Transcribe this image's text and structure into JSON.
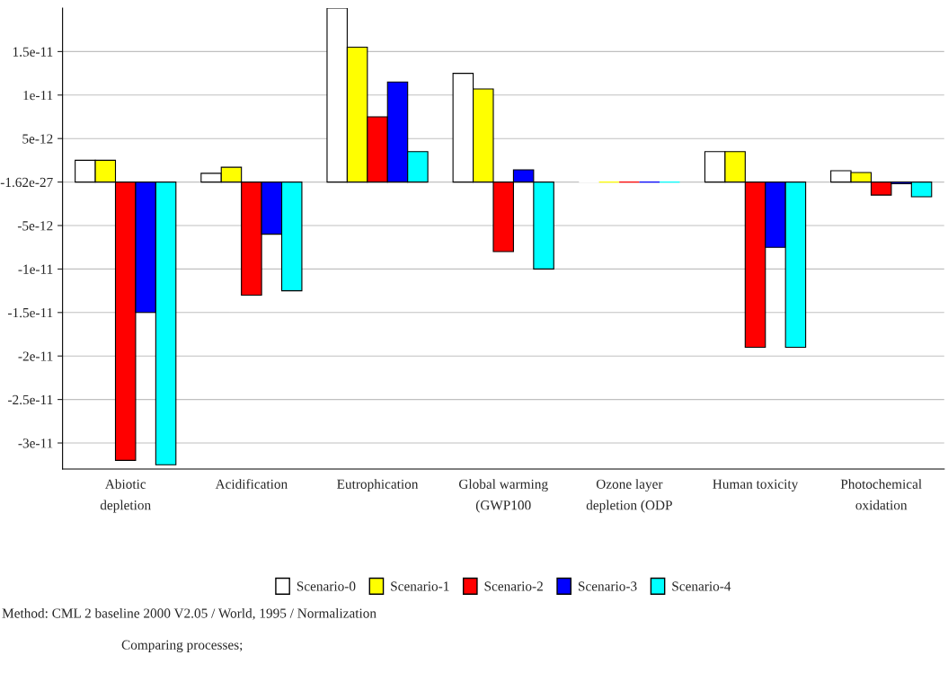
{
  "chart_data": {
    "type": "bar",
    "categories": [
      "Abiotic\ndepletion",
      "Acidification",
      "Eutrophication",
      "Global warming\n(GWP100",
      "Ozone layer\ndepletion (ODP",
      "Human toxicity",
      "Photochemical\noxidation"
    ],
    "series": [
      {
        "name": "Scenario-0",
        "color": "#ffffff",
        "values": [
          2.5e-12,
          1e-12,
          2e-11,
          1.25e-11,
          0,
          3.5e-12,
          1.3e-12
        ]
      },
      {
        "name": "Scenario-1",
        "color": "#ffff00",
        "values": [
          2.5e-12,
          1.7e-12,
          1.55e-11,
          1.07e-11,
          0,
          3.5e-12,
          1.1e-12
        ]
      },
      {
        "name": "Scenario-2",
        "color": "#ff0000",
        "values": [
          -3.2e-11,
          -1.3e-11,
          7.5e-12,
          -8e-12,
          0,
          -1.9e-11,
          -1.5e-12
        ]
      },
      {
        "name": "Scenario-3",
        "color": "#0000ff",
        "values": [
          -1.5e-11,
          -6e-12,
          1.15e-11,
          1.4e-12,
          0,
          -7.5e-12,
          -2e-13
        ]
      },
      {
        "name": "Scenario-4",
        "color": "#00ffff",
        "values": [
          -3.25e-11,
          -1.25e-11,
          3.5e-12,
          -1e-11,
          0,
          -1.9e-11,
          -1.7e-12
        ]
      }
    ],
    "ylim": [
      -3.3e-11,
      2e-11
    ],
    "yticks": [
      {
        "value": 1.5e-11,
        "label": "1.5e-11"
      },
      {
        "value": 1e-11,
        "label": "1e-11"
      },
      {
        "value": 5e-12,
        "label": "5e-12"
      },
      {
        "value": 0,
        "label": "-1.62e-27"
      },
      {
        "value": -5e-12,
        "label": "-5e-12"
      },
      {
        "value": -1e-11,
        "label": "-1e-11"
      },
      {
        "value": -1.5e-11,
        "label": "-1.5e-11"
      },
      {
        "value": -2e-11,
        "label": "-2e-11"
      },
      {
        "value": -2.5e-11,
        "label": "-2.5e-11"
      },
      {
        "value": -3e-11,
        "label": "-3e-11"
      }
    ],
    "grid": "y",
    "legend": "bottom",
    "annotations": [
      "Method: CML 2 baseline 2000 V2.05 / World, 1995 / Normalization",
      "Comparing processes;"
    ]
  }
}
